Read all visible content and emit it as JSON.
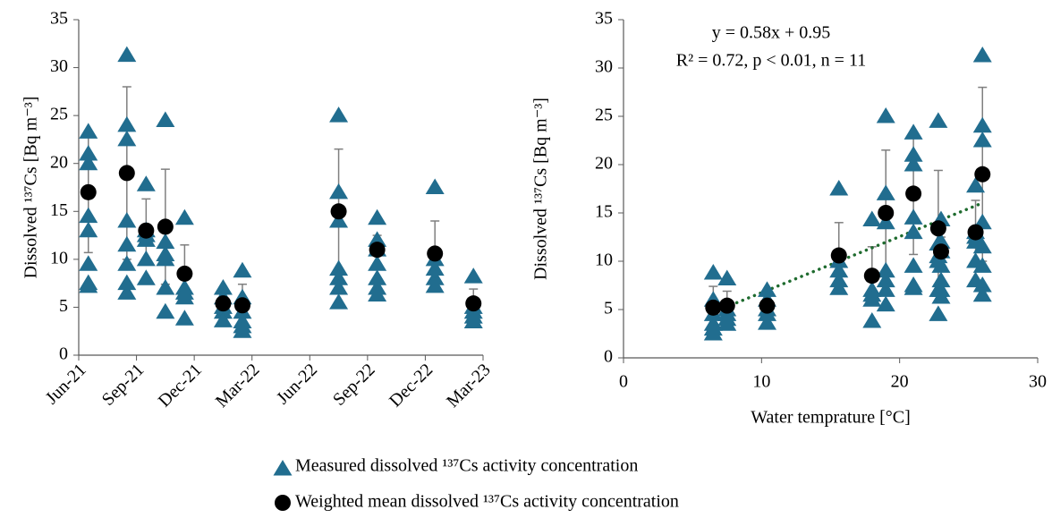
{
  "chart_data": [
    {
      "type": "scatter",
      "ylabel": "Dissolved ¹³⁷Cs [Bq m⁻³]",
      "xlim": [
        "2021-06",
        "2023-03"
      ],
      "xticks": [
        {
          "value": "2021-06",
          "label": "Jun-21"
        },
        {
          "value": "2021-09",
          "label": "Sep-21"
        },
        {
          "value": "2021-12",
          "label": "Dec-21"
        },
        {
          "value": "2022-03",
          "label": "Mar-22"
        },
        {
          "value": "2022-06",
          "label": "Jun-22"
        },
        {
          "value": "2022-09",
          "label": "Sep-22"
        },
        {
          "value": "2022-12",
          "label": "Dec-22"
        },
        {
          "value": "2023-03",
          "label": "Mar-23"
        }
      ],
      "ylim": [
        0,
        35
      ],
      "yticks": [
        0,
        5,
        10,
        15,
        20,
        25,
        30,
        35
      ],
      "series": [
        {
          "name": "Measured dissolved ¹³⁷Cs activity concentration",
          "marker": "triangle",
          "color": "#216d8f",
          "x": [
            "2021-06",
            "2021-06",
            "2021-06",
            "2021-06",
            "2021-06",
            "2021-06",
            "2021-06",
            "2021-06",
            "2021-08",
            "2021-08",
            "2021-08",
            "2021-08",
            "2021-08",
            "2021-08",
            "2021-08",
            "2021-08",
            "2021-09",
            "2021-09",
            "2021-09",
            "2021-09",
            "2021-09",
            "2021-09",
            "2021-10",
            "2021-10",
            "2021-10",
            "2021-10",
            "2021-10",
            "2021-10",
            "2021-11",
            "2021-11",
            "2021-11",
            "2021-11",
            "2021-11",
            "2022-01",
            "2022-01",
            "2022-01",
            "2022-01",
            "2022-01",
            "2022-02",
            "2022-02",
            "2022-02",
            "2022-02",
            "2022-02",
            "2022-02",
            "2022-07",
            "2022-07",
            "2022-07",
            "2022-07",
            "2022-07",
            "2022-07",
            "2022-07",
            "2022-09",
            "2022-09",
            "2022-09",
            "2022-09",
            "2022-09",
            "2022-09",
            "2022-09",
            "2022-12",
            "2022-12",
            "2022-12",
            "2022-12",
            "2022-12",
            "2023-02",
            "2023-02",
            "2023-02",
            "2023-02",
            "2023-02"
          ],
          "values": [
            23.3,
            21,
            20,
            14.5,
            13,
            9.5,
            7.5,
            7.2,
            31.3,
            24,
            22.5,
            14,
            11.5,
            9.5,
            7.5,
            6.5,
            17.8,
            13,
            12.5,
            12,
            10,
            8,
            24.5,
            11.8,
            10.5,
            10,
            7,
            4.5,
            14.3,
            7,
            6.5,
            6,
            3.8,
            7,
            6,
            5,
            4.5,
            3.6,
            8.8,
            6,
            4.5,
            3.5,
            3,
            2.5,
            25,
            17,
            14,
            9,
            8,
            7,
            5.5,
            14.3,
            12,
            11,
            9.5,
            8,
            7,
            6.3,
            17.5,
            10,
            9,
            8,
            7.2,
            8.2,
            5,
            4.5,
            4,
            3.5
          ]
        },
        {
          "name": "Weighted mean dissolved ¹³⁷Cs activity concentration",
          "marker": "circle",
          "color": "#000000",
          "error_color": "#7f7f7f",
          "x": [
            "2021-06",
            "2021-08",
            "2021-09",
            "2021-10",
            "2021-11",
            "2022-01",
            "2022-02",
            "2022-07",
            "2022-09",
            "2022-12",
            "2023-02"
          ],
          "values": [
            17,
            19,
            13,
            13.4,
            8.5,
            5.4,
            5.2,
            15,
            11,
            10.6,
            5.4
          ],
          "errors": [
            6.3,
            9,
            3.3,
            6,
            3,
            1.2,
            2.2,
            6.5,
            1.5,
            3.4,
            1.5
          ]
        }
      ]
    },
    {
      "type": "scatter",
      "ylabel": "Dissolved ¹³⁷Cs [Bq m⁻³]",
      "xlabel": "Water temprature [°C]",
      "xlim": [
        0,
        30
      ],
      "xticks": [
        0,
        10,
        20,
        30
      ],
      "ylim": [
        0,
        35
      ],
      "yticks": [
        0,
        5,
        10,
        15,
        20,
        25,
        30,
        35
      ],
      "annotations": [
        "y = 0.58x + 0.95",
        "R² = 0.72, p < 0.01, n = 11"
      ],
      "trendline": {
        "slope": 0.58,
        "intercept": 0.95,
        "color": "#1e6b2e"
      },
      "series": [
        {
          "marker": "triangle",
          "color": "#216d8f",
          "x": [
            21,
            21,
            21,
            21,
            21,
            21,
            21,
            21,
            26,
            26,
            26,
            26,
            26,
            26,
            26,
            26,
            25.5,
            25.5,
            25.5,
            25.5,
            25.5,
            25.5,
            22.8,
            22.8,
            22.8,
            22.8,
            22.8,
            22.8,
            18,
            18,
            18,
            18,
            18,
            10.4,
            10.4,
            10.4,
            10.4,
            10.4,
            6.5,
            6.5,
            6.5,
            6.5,
            6.5,
            6.5,
            19,
            19,
            19,
            19,
            19,
            19,
            19,
            23,
            23,
            23,
            23,
            23,
            23,
            23,
            15.6,
            15.6,
            15.6,
            15.6,
            15.6,
            7.5,
            7.5,
            7.5,
            7.5,
            7.5
          ],
          "values": [
            23.3,
            21,
            20,
            14.5,
            13,
            9.5,
            7.5,
            7.2,
            31.3,
            24,
            22.5,
            14,
            11.5,
            9.5,
            7.5,
            6.5,
            17.8,
            13,
            12.5,
            12,
            10,
            8,
            24.5,
            11.8,
            10.5,
            10,
            7,
            4.5,
            14.3,
            7,
            6.5,
            6,
            3.8,
            7,
            6,
            5,
            4.5,
            3.6,
            8.8,
            6,
            4.5,
            3.5,
            3,
            2.5,
            25,
            17,
            14,
            9,
            8,
            7,
            5.5,
            14.3,
            12,
            11,
            9.5,
            8,
            7,
            6.3,
            17.5,
            10,
            9,
            8,
            7.2,
            8.2,
            5,
            4.5,
            4,
            3.5
          ]
        },
        {
          "marker": "circle",
          "color": "#000000",
          "error_color": "#7f7f7f",
          "x": [
            21,
            26,
            25.5,
            22.8,
            18,
            10.4,
            6.5,
            19,
            23,
            15.6,
            7.5
          ],
          "values": [
            17,
            19,
            13,
            13.4,
            8.5,
            5.4,
            5.2,
            15,
            11,
            10.6,
            5.4
          ],
          "errors": [
            6.3,
            9,
            3.3,
            6,
            3,
            1.2,
            2.2,
            6.5,
            1.5,
            3.4,
            1.5
          ]
        }
      ]
    }
  ]
}
